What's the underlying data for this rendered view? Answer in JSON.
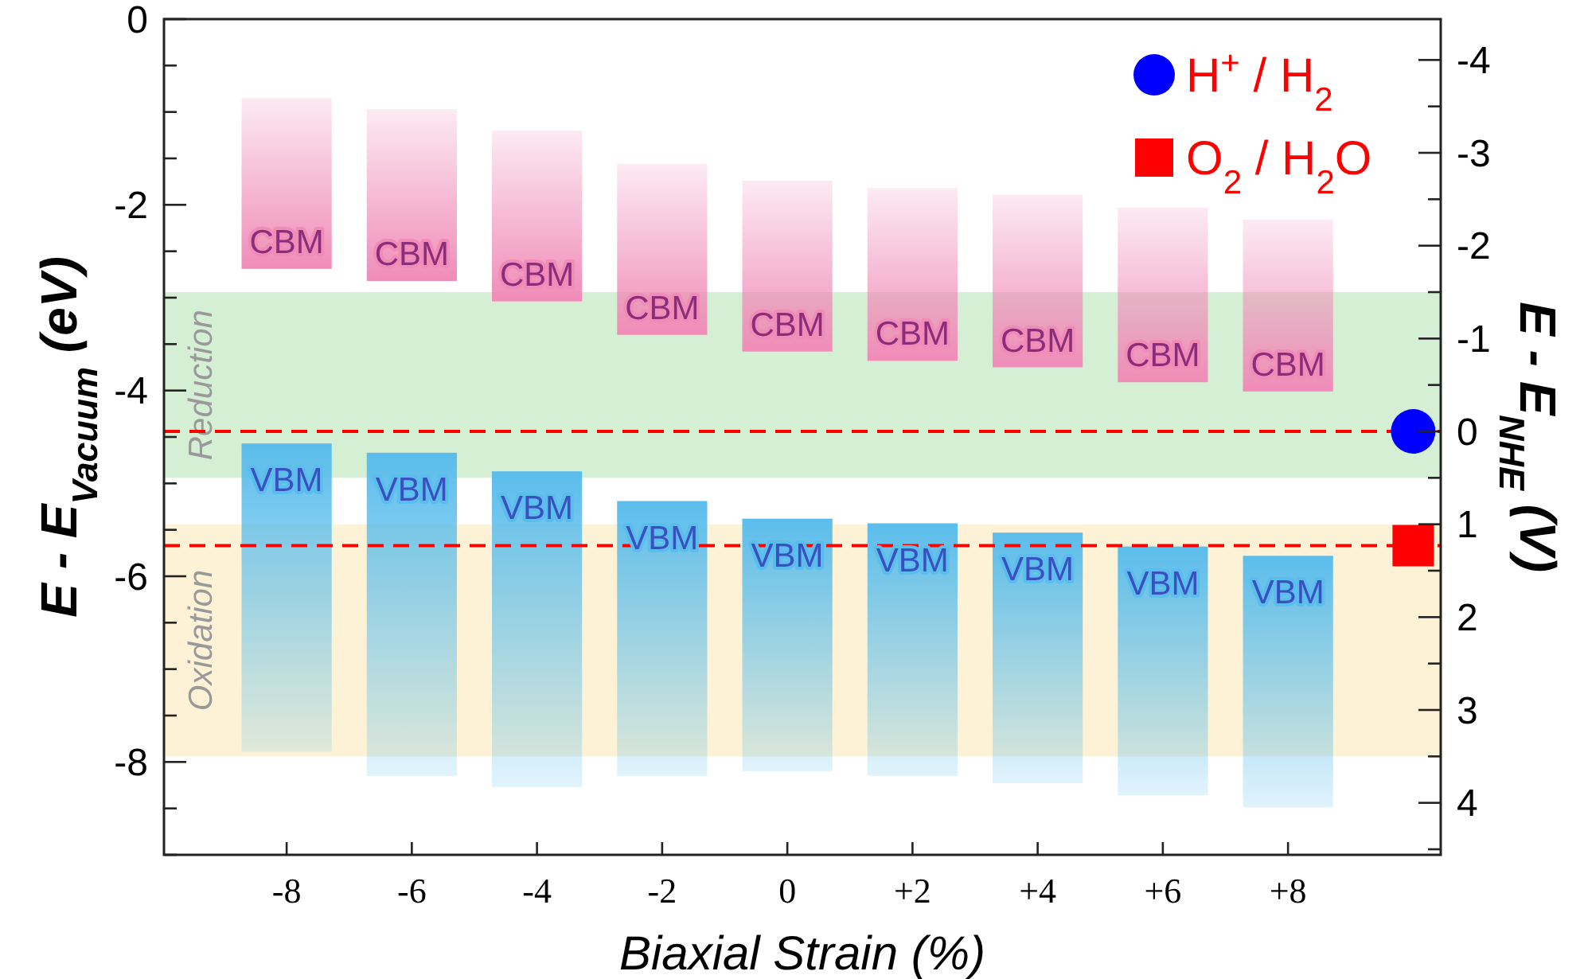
{
  "chart_data": {
    "type": "bar",
    "xlabel": "Biaxial Strain (%)",
    "ylabel": "E - E$_{Vacuum}$ (eV)",
    "y2label": "E - E$_{NHE}$ (V)",
    "categories": [
      "-8",
      "-6",
      "-4",
      "-2",
      "0",
      "+2",
      "+4",
      "+6",
      "+8",
      null
    ],
    "series": [
      {
        "name": "CBM",
        "color": "#f08cb8",
        "base": [
          -2.69,
          -2.82,
          -3.04,
          -3.4,
          -3.58,
          -3.68,
          -3.75,
          -3.91,
          -4.01,
          null
        ],
        "values": [
          1.84,
          1.85,
          1.84,
          1.84,
          1.84,
          1.86,
          1.86,
          1.88,
          1.85,
          null
        ]
      },
      {
        "name": "VBM",
        "color": "#5bbdec",
        "base": [
          -4.57,
          -4.67,
          -4.87,
          -5.19,
          -5.38,
          -5.43,
          -5.53,
          -5.68,
          -5.78,
          null
        ],
        "values": [
          -3.32,
          -3.48,
          -3.4,
          -2.96,
          -2.72,
          -2.72,
          -2.7,
          -2.68,
          -2.71,
          null
        ]
      },
      {
        "name": "H$^{+}$ / H$_{2}$",
        "type": "scatter",
        "marker": "circle",
        "color": "#0000ff",
        "values": [
          null,
          null,
          null,
          null,
          null,
          null,
          null,
          null,
          null,
          -4.44
        ]
      },
      {
        "name": "O$_{2}$ / H$_{2}$O",
        "type": "scatter",
        "marker": "square",
        "color": "#ff0000",
        "values": [
          null,
          null,
          null,
          null,
          null,
          null,
          null,
          null,
          null,
          -5.67
        ]
      }
    ],
    "ylim": [
      -9,
      0
    ],
    "yticks": [
      {
        "value": -9,
        "label": null
      },
      {
        "value": -8.5,
        "label": null
      },
      -8,
      {
        "value": -7.5,
        "label": null
      },
      {
        "value": -7,
        "label": null
      },
      {
        "value": -6.5,
        "label": null
      },
      -6,
      {
        "value": -5.5,
        "label": null
      },
      {
        "value": -5,
        "label": null
      },
      {
        "value": -4.5,
        "label": null
      },
      -4,
      {
        "value": -3.5,
        "label": null
      },
      {
        "value": -3,
        "label": null
      },
      {
        "value": -2.5,
        "label": null
      },
      -2,
      {
        "value": -1.5,
        "label": null
      },
      {
        "value": -1,
        "label": null
      },
      {
        "value": -0.5,
        "label": null
      },
      0
    ],
    "y2lim": [
      4.56,
      -4.44
    ],
    "y2ticks": [
      -4,
      {
        "value": -3.5,
        "label": null
      },
      -3,
      {
        "value": -2.5,
        "label": null
      },
      -2,
      {
        "value": -1.5,
        "label": null
      },
      -1,
      {
        "value": -0.5,
        "label": null
      },
      0,
      {
        "value": 0.5,
        "label": null
      },
      1,
      {
        "value": 1.5,
        "label": null
      },
      2,
      {
        "value": 2.5,
        "label": null
      },
      3,
      {
        "value": 3.5,
        "label": null
      },
      4,
      {
        "value": 4.5,
        "label": null
      }
    ],
    "bands": [
      {
        "axis": "y",
        "from": -2.94,
        "to": -4.94,
        "label": "Reduction",
        "color": "#d5efd5"
      },
      {
        "axis": "y",
        "from": -5.44,
        "to": -7.94,
        "label": "Oxidation",
        "color": "#fdf2d5"
      }
    ],
    "ref_lines": [
      {
        "axis": "y",
        "value": -4.44,
        "color": "#ff0000",
        "line_style": "dashed"
      },
      {
        "axis": "y",
        "value": -5.67,
        "color": "#ff0000",
        "line_style": "dashed"
      }
    ],
    "legend": "top right",
    "grid": false
  }
}
